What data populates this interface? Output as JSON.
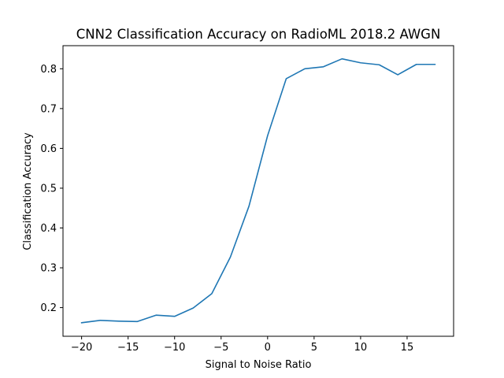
{
  "chart_data": {
    "type": "line",
    "title": "CNN2 Classification Accuracy on RadioML 2018.2 AWGN",
    "xlabel": "Signal to Noise Ratio",
    "ylabel": "Classification Accuracy",
    "xlim": [
      -22,
      20
    ],
    "ylim": [
      0.128,
      0.858
    ],
    "grid": false,
    "x_ticks": [
      -20,
      -15,
      -10,
      -5,
      0,
      5,
      10,
      15
    ],
    "x_tick_labels": [
      "−20",
      "−15",
      "−10",
      "−5",
      "0",
      "5",
      "10",
      "15"
    ],
    "y_ticks": [
      0.2,
      0.3,
      0.4,
      0.5,
      0.6,
      0.7,
      0.8
    ],
    "y_tick_labels": [
      "0.2",
      "0.3",
      "0.4",
      "0.5",
      "0.6",
      "0.7",
      "0.8"
    ],
    "series": [
      {
        "color": "#1f77b4",
        "x": [
          -20,
          -18,
          -16,
          -14,
          -12,
          -10,
          -8,
          -6,
          -4,
          -2,
          0,
          2,
          4,
          6,
          8,
          10,
          12,
          14,
          16,
          18
        ],
        "y": [
          0.162,
          0.168,
          0.166,
          0.165,
          0.181,
          0.178,
          0.199,
          0.235,
          0.327,
          0.455,
          0.632,
          0.775,
          0.8,
          0.805,
          0.825,
          0.815,
          0.81,
          0.785,
          0.811,
          0.811
        ]
      }
    ]
  }
}
